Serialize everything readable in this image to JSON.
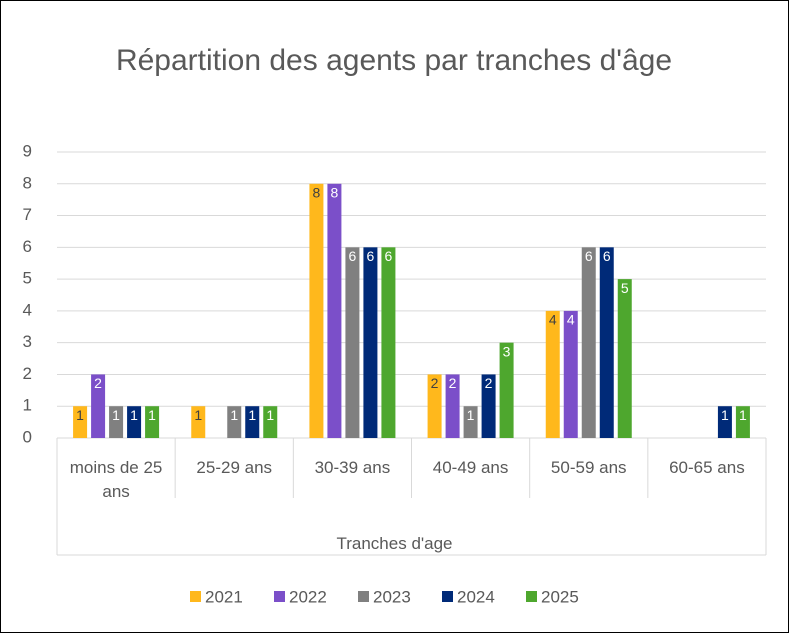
{
  "chart_data": {
    "type": "bar",
    "title": "Répartition des agents par tranches d'âge",
    "x_label": "Tranches d'age",
    "categories": [
      "moins de 25 ans",
      "25-29 ans",
      "30-39 ans",
      "40-49 ans",
      "50-59 ans",
      "60-65 ans"
    ],
    "series": [
      {
        "name": "2021",
        "color": "#ffb81c",
        "values": [
          1,
          1,
          8,
          2,
          4,
          null
        ]
      },
      {
        "name": "2022",
        "color": "#7b4fc9",
        "values": [
          2,
          null,
          8,
          2,
          4,
          null
        ]
      },
      {
        "name": "2023",
        "color": "#808080",
        "values": [
          1,
          1,
          6,
          1,
          6,
          null
        ]
      },
      {
        "name": "2024",
        "color": "#002a78",
        "values": [
          1,
          1,
          6,
          2,
          6,
          1
        ]
      },
      {
        "name": "2025",
        "color": "#4ea72e",
        "values": [
          1,
          1,
          6,
          3,
          5,
          1
        ]
      }
    ],
    "ylim": [
      0,
      9
    ],
    "yticks": [
      0,
      1,
      2,
      3,
      4,
      5,
      6,
      7,
      8,
      9
    ],
    "grid": true,
    "legend": "bottom"
  }
}
